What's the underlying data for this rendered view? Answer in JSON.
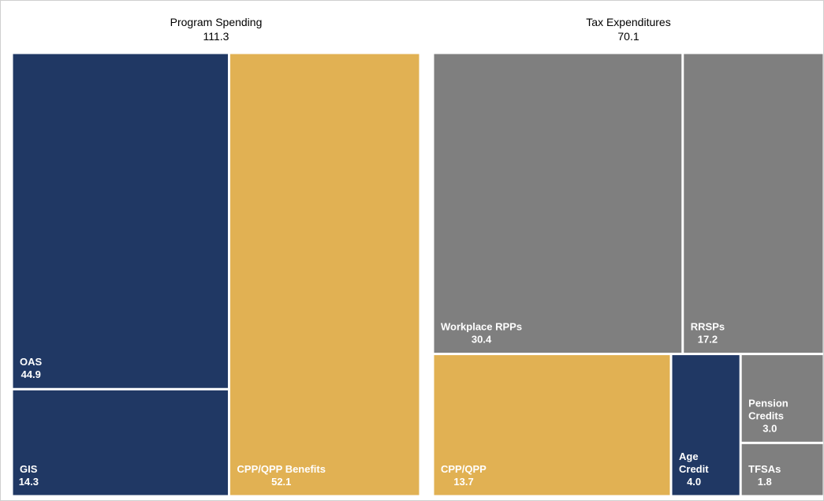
{
  "chart_data": {
    "type": "treemap",
    "groups": [
      {
        "name": "Program Spending",
        "value": 111.3,
        "children": [
          {
            "name": "OAS",
            "value": 44.9,
            "color": "#203864"
          },
          {
            "name": "GIS",
            "value": 14.3,
            "color": "#203864"
          },
          {
            "name": "CPP/QPP Benefits",
            "value": 52.1,
            "color": "#e1b153"
          }
        ]
      },
      {
        "name": "Tax Expenditures",
        "value": 70.1,
        "children": [
          {
            "name": "Workplace RPPs",
            "value": 30.4,
            "color": "#7f7f7f"
          },
          {
            "name": "RRSPs",
            "value": 17.2,
            "color": "#7f7f7f"
          },
          {
            "name": "CPP/QPP",
            "value": 13.7,
            "color": "#e1b153"
          },
          {
            "name": "Age Credit",
            "value": 4.0,
            "value_label": "4.0",
            "color": "#203864"
          },
          {
            "name": "Pension Credits",
            "value": 3.0,
            "value_label": "3.0",
            "color": "#7f7f7f"
          },
          {
            "name": "TFSAs",
            "value": 1.8,
            "color": "#7f7f7f"
          }
        ]
      }
    ]
  }
}
